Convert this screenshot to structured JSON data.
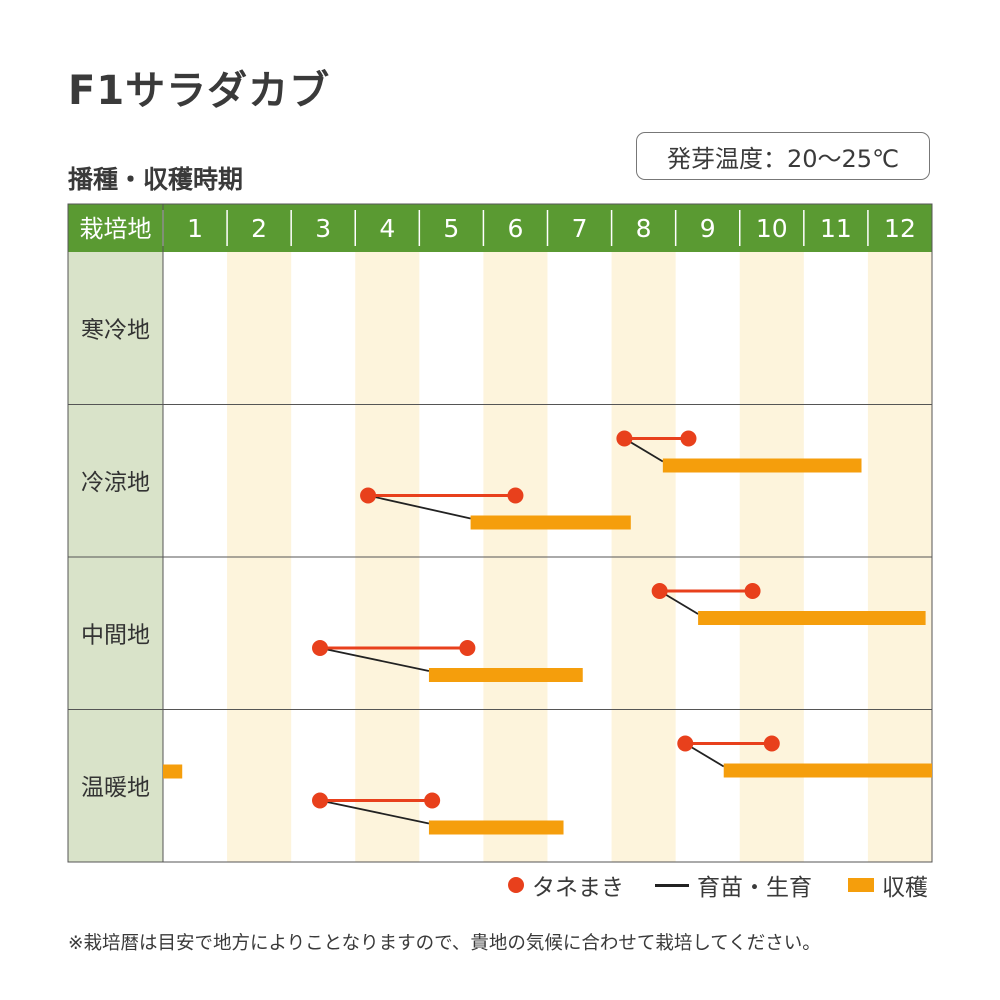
{
  "title": "F1サラダカブ",
  "subtitle": "播種・収穫時期",
  "germination_temp": "発芽温度：20〜25℃",
  "colors": {
    "header_green": "#5a9a32",
    "region_cell": "#d9e3c9",
    "stripe": "#fdf4dc",
    "sow": "#e8401c",
    "grow": "#222222",
    "harvest": "#f59e0c"
  },
  "legend": {
    "sow": "タネまき",
    "grow": "育苗・生育",
    "harvest": "収穫"
  },
  "footnote": "※栽培暦は目安で地方によりことなりますので、貴地の気候に合わせて栽培してください。",
  "chart_data": {
    "type": "gantt",
    "header_label": "栽培地",
    "months": [
      "1",
      "2",
      "3",
      "4",
      "5",
      "6",
      "7",
      "8",
      "9",
      "10",
      "11",
      "12"
    ],
    "regions": [
      {
        "name": "寒冷地",
        "schedules": []
      },
      {
        "name": "冷涼地",
        "schedules": [
          {
            "sow": [
              8.2,
              9.2
            ],
            "harvest": [
              8.8,
              11.9
            ]
          },
          {
            "sow": [
              4.2,
              6.5
            ],
            "harvest": [
              5.8,
              8.3
            ]
          }
        ]
      },
      {
        "name": "中間地",
        "schedules": [
          {
            "sow": [
              8.75,
              10.2
            ],
            "harvest": [
              9.35,
              12.9
            ]
          },
          {
            "sow": [
              3.45,
              5.75
            ],
            "harvest": [
              5.15,
              7.55
            ]
          }
        ]
      },
      {
        "name": "温暖地",
        "schedules": [
          {
            "sow": [
              9.15,
              10.5
            ],
            "harvest": [
              9.75,
              13.0
            ]
          },
          {
            "sow": [
              3.45,
              5.2
            ],
            "harvest": [
              5.15,
              7.25
            ]
          },
          {
            "harvest": [
              1.0,
              1.3
            ]
          }
        ]
      }
    ]
  }
}
